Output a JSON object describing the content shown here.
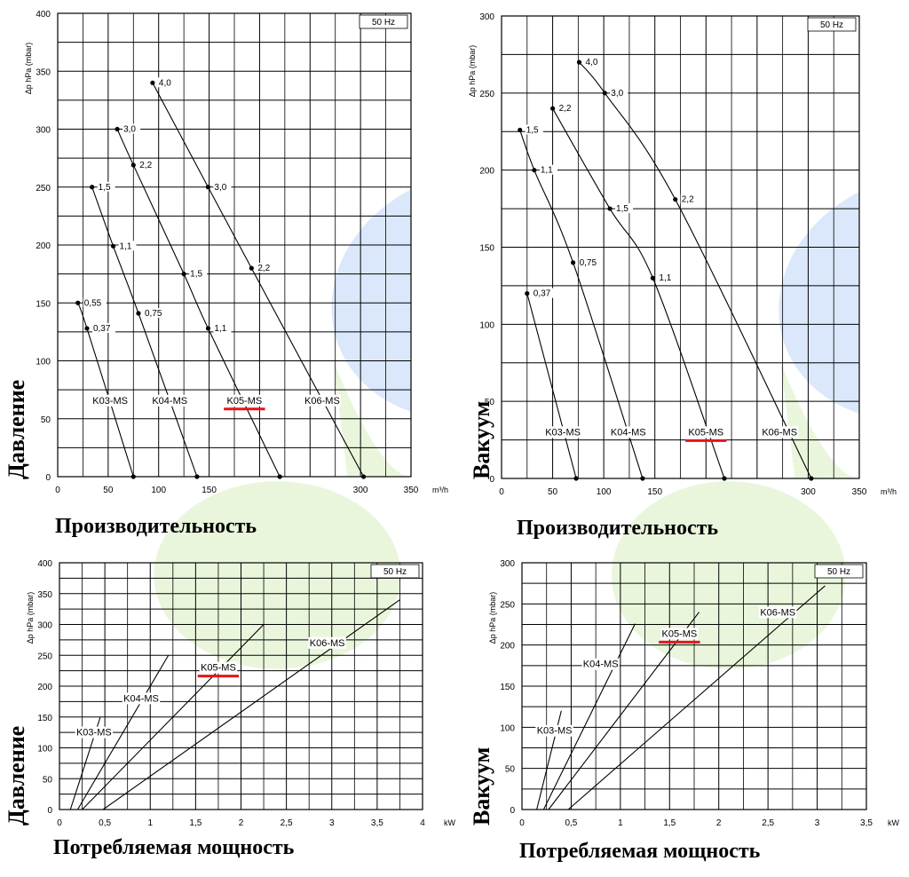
{
  "side_labels": [
    "Давление",
    "Вакуум",
    "Давление",
    "Вакуум"
  ],
  "bottom_labels": [
    "Производительность",
    "Производительность",
    "Потребляемая мощность",
    "Потребляемая мощность"
  ],
  "chart_data": [
    {
      "type": "line",
      "title": "",
      "badge": "50 Hz",
      "ylabel": "Δp hPa (mbar)",
      "xunit": "m³/h",
      "xlim": [
        0,
        350
      ],
      "ylim": [
        0,
        400
      ],
      "xticks": [
        0,
        50,
        100,
        150,
        200,
        250,
        300,
        350
      ],
      "xtick_labels": [
        "0",
        "50",
        "100",
        "150",
        "200",
        "250",
        "300",
        "350"
      ],
      "yticks": [
        0,
        50,
        100,
        150,
        200,
        250,
        300,
        350,
        400
      ],
      "ytick_labels": [
        "0",
        "50",
        "100",
        "150",
        "200",
        "250",
        "300",
        "350",
        "400"
      ],
      "highlight": "K05-MS",
      "series": [
        {
          "name": "K03-MS",
          "label_at": [
            52,
            63
          ],
          "x": [
            20,
            29,
            75
          ],
          "y": [
            150,
            128,
            0
          ],
          "points": [
            {
              "x": 20,
              "y": 150,
              "label": "0,55"
            },
            {
              "x": 29,
              "y": 128,
              "label": "0,37"
            },
            {
              "x": 75,
              "y": 0,
              "label": ""
            }
          ]
        },
        {
          "name": "K04-MS",
          "label_at": [
            111,
            63
          ],
          "x": [
            34,
            55,
            80,
            138
          ],
          "y": [
            250,
            199,
            141,
            0
          ],
          "points": [
            {
              "x": 34,
              "y": 250,
              "label": "1,5"
            },
            {
              "x": 55,
              "y": 199,
              "label": "1,1"
            },
            {
              "x": 80,
              "y": 141,
              "label": "0,75"
            },
            {
              "x": 138,
              "y": 0,
              "label": ""
            }
          ]
        },
        {
          "name": "K05-MS",
          "label_at": [
            185,
            63
          ],
          "x": [
            59,
            75,
            125,
            149,
            220
          ],
          "y": [
            300,
            269,
            175,
            128,
            0
          ],
          "points": [
            {
              "x": 59,
              "y": 300,
              "label": "3,0"
            },
            {
              "x": 75,
              "y": 269,
              "label": "2,2"
            },
            {
              "x": 125,
              "y": 175,
              "label": "1,5"
            },
            {
              "x": 149,
              "y": 128,
              "label": "1,1"
            },
            {
              "x": 220,
              "y": 0,
              "label": ""
            }
          ]
        },
        {
          "name": "K06-MS",
          "label_at": [
            262,
            63
          ],
          "x": [
            94,
            149,
            192,
            303
          ],
          "y": [
            340,
            250,
            180,
            0
          ],
          "points": [
            {
              "x": 94,
              "y": 340,
              "label": "4,0"
            },
            {
              "x": 149,
              "y": 250,
              "label": "3,0"
            },
            {
              "x": 192,
              "y": 180,
              "label": "2,2"
            },
            {
              "x": 303,
              "y": 0,
              "label": ""
            }
          ]
        }
      ]
    },
    {
      "type": "line",
      "title": "",
      "badge": "50 Hz",
      "ylabel": "Δp hPa (mbar)",
      "xunit": "m³/h",
      "xlim": [
        0,
        350
      ],
      "ylim": [
        0,
        300
      ],
      "xticks": [
        0,
        50,
        100,
        150,
        200,
        250,
        300,
        350
      ],
      "xtick_labels": [
        "0",
        "50",
        "100",
        "150",
        "200",
        "250",
        "300",
        "350"
      ],
      "yticks": [
        0,
        50,
        100,
        150,
        200,
        250,
        300
      ],
      "ytick_labels": [
        "0",
        "50",
        "100",
        "150",
        "200",
        "250",
        "300"
      ],
      "highlight": "K05-MS",
      "series": [
        {
          "name": "K03-MS",
          "label_at": [
            60,
            28
          ],
          "x": [
            25,
            73
          ],
          "y": [
            120,
            0
          ],
          "points": [
            {
              "x": 25,
              "y": 120,
              "label": "0,37"
            },
            {
              "x": 73,
              "y": 0,
              "label": ""
            }
          ]
        },
        {
          "name": "K04-MS",
          "label_at": [
            124,
            28
          ],
          "x": [
            18,
            32,
            70,
            138
          ],
          "y": [
            226,
            200,
            140,
            0
          ],
          "points": [
            {
              "x": 18,
              "y": 226,
              "label": "1,5"
            },
            {
              "x": 32,
              "y": 200,
              "label": "1,1"
            },
            {
              "x": 70,
              "y": 140,
              "label": "0,75"
            },
            {
              "x": 138,
              "y": 0,
              "label": ""
            }
          ]
        },
        {
          "name": "K05-MS",
          "label_at": [
            200,
            28
          ],
          "x": [
            50,
            106,
            148,
            218
          ],
          "y": [
            240,
            175,
            130,
            0
          ],
          "points": [
            {
              "x": 50,
              "y": 240,
              "label": "2,2"
            },
            {
              "x": 106,
              "y": 175,
              "label": "1,5"
            },
            {
              "x": 148,
              "y": 130,
              "label": "1,1"
            },
            {
              "x": 218,
              "y": 0,
              "label": ""
            }
          ]
        },
        {
          "name": "K06-MS",
          "label_at": [
            272,
            28
          ],
          "x": [
            76,
            101,
            170,
            303
          ],
          "y": [
            270,
            250,
            181,
            0
          ],
          "points": [
            {
              "x": 76,
              "y": 270,
              "label": "4,0"
            },
            {
              "x": 101,
              "y": 250,
              "label": "3,0"
            },
            {
              "x": 170,
              "y": 181,
              "label": "2,2"
            },
            {
              "x": 303,
              "y": 0,
              "label": ""
            }
          ]
        }
      ]
    },
    {
      "type": "line",
      "title": "",
      "badge": "50 Hz",
      "ylabel": "Δp hPa (mbar)",
      "xunit": "kW",
      "xlim": [
        0,
        4
      ],
      "ylim": [
        0,
        400
      ],
      "xticks": [
        0,
        0.5,
        1,
        1.5,
        2,
        2.5,
        3,
        3.5,
        4
      ],
      "xtick_labels": [
        "0",
        "0,5",
        "1",
        "1,5",
        "2",
        "2,5",
        "3",
        "3,5",
        "4"
      ],
      "yticks": [
        0,
        50,
        100,
        150,
        200,
        250,
        300,
        350,
        400
      ],
      "ytick_labels": [
        "0",
        "50",
        "100",
        "150",
        "200",
        "250",
        "300",
        "350",
        "400"
      ],
      "highlight": "K05-MS",
      "series": [
        {
          "name": "K03-MS",
          "label_at": [
            0.38,
            120
          ],
          "x": [
            0.12,
            0.45
          ],
          "y": [
            0,
            150
          ]
        },
        {
          "name": "K04-MS",
          "label_at": [
            0.9,
            175
          ],
          "x": [
            0.2,
            1.2
          ],
          "y": [
            0,
            250
          ]
        },
        {
          "name": "K05-MS",
          "label_at": [
            1.75,
            225
          ],
          "x": [
            0.25,
            2.25
          ],
          "y": [
            0,
            300
          ]
        },
        {
          "name": "K06-MS",
          "label_at": [
            2.95,
            265
          ],
          "x": [
            0.48,
            3.75
          ],
          "y": [
            0,
            340
          ]
        }
      ]
    },
    {
      "type": "line",
      "title": "",
      "badge": "50 Hz",
      "ylabel": "Δp hPa (mbar)",
      "xunit": "kW",
      "xlim": [
        0,
        3.5
      ],
      "ylim": [
        0,
        300
      ],
      "xticks": [
        0,
        0.5,
        1,
        1.5,
        2,
        2.5,
        3,
        3.5
      ],
      "xtick_labels": [
        "0",
        "0,5",
        "1",
        "1,5",
        "2",
        "2,5",
        "3",
        "3,5"
      ],
      "yticks": [
        0,
        50,
        100,
        150,
        200,
        250,
        300
      ],
      "ytick_labels": [
        "0",
        "50",
        "100",
        "150",
        "200",
        "250",
        "300"
      ],
      "highlight": "K05-MS",
      "series": [
        {
          "name": "K03-MS",
          "label_at": [
            0.33,
            92
          ],
          "x": [
            0.15,
            0.4
          ],
          "y": [
            0,
            120
          ]
        },
        {
          "name": "K04-MS",
          "label_at": [
            0.8,
            173
          ],
          "x": [
            0.22,
            1.15
          ],
          "y": [
            0,
            226
          ]
        },
        {
          "name": "K05-MS",
          "label_at": [
            1.6,
            210
          ],
          "x": [
            0.27,
            1.8
          ],
          "y": [
            0,
            240
          ]
        },
        {
          "name": "K06-MS",
          "label_at": [
            2.6,
            236
          ],
          "x": [
            0.47,
            3.08
          ],
          "y": [
            0,
            272
          ]
        }
      ]
    }
  ]
}
